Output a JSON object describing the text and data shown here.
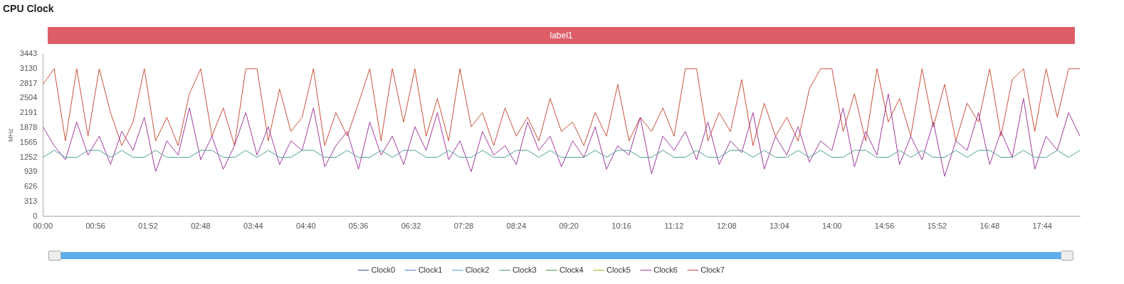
{
  "chart_data": {
    "type": "line",
    "title": "CPU Clock",
    "ylabel": "MHz",
    "annotations": [
      "label1"
    ],
    "legend": "bottom",
    "marker": "none",
    "line_style": "solid",
    "xlim": [
      0,
      18.4
    ],
    "ylim": [
      0,
      3443
    ],
    "xticks": [
      {
        "value": 0,
        "label": "00:00"
      },
      {
        "value": 0.9333,
        "label": "00:56"
      },
      {
        "value": 1.8667,
        "label": "01:52"
      },
      {
        "value": 2.8,
        "label": "02:48"
      },
      {
        "value": 3.7333,
        "label": "03:44"
      },
      {
        "value": 4.6667,
        "label": "04:40"
      },
      {
        "value": 5.6,
        "label": "05:36"
      },
      {
        "value": 6.5333,
        "label": "06:32"
      },
      {
        "value": 7.4667,
        "label": "07:28"
      },
      {
        "value": 8.4,
        "label": "08:24"
      },
      {
        "value": 9.3333,
        "label": "09:20"
      },
      {
        "value": 10.2667,
        "label": "10:16"
      },
      {
        "value": 11.2,
        "label": "11:12"
      },
      {
        "value": 12.1333,
        "label": "12:08"
      },
      {
        "value": 13.0667,
        "label": "13:04"
      },
      {
        "value": 14,
        "label": "14:00"
      },
      {
        "value": 14.9333,
        "label": "14:56"
      },
      {
        "value": 15.8667,
        "label": "15:52"
      },
      {
        "value": 16.8,
        "label": "16:48"
      },
      {
        "value": 17.7333,
        "label": "17:44"
      }
    ],
    "yticks": [
      0,
      313,
      626,
      939,
      1252,
      1565,
      1878,
      2191,
      2504,
      2817,
      3130,
      3443
    ],
    "x": [
      0,
      0.2,
      0.4,
      0.6,
      0.8,
      1,
      1.2,
      1.4,
      1.6,
      1.8,
      2,
      2.2,
      2.4,
      2.6,
      2.8,
      3,
      3.2,
      3.4,
      3.6,
      3.8,
      4,
      4.2,
      4.4,
      4.6,
      4.8,
      5,
      5.2,
      5.4,
      5.6,
      5.8,
      6,
      6.2,
      6.4,
      6.6,
      6.8,
      7,
      7.2,
      7.4,
      7.6,
      7.8,
      8,
      8.2,
      8.4,
      8.6,
      8.8,
      9,
      9.2,
      9.4,
      9.6,
      9.8,
      10,
      10.2,
      10.4,
      10.6,
      10.8,
      11,
      11.2,
      11.4,
      11.6,
      11.8,
      12,
      12.2,
      12.4,
      12.6,
      12.8,
      13,
      13.2,
      13.4,
      13.6,
      13.8,
      14,
      14.2,
      14.4,
      14.6,
      14.8,
      15,
      15.2,
      15.4,
      15.6,
      15.8,
      16,
      16.2,
      16.4,
      16.6,
      16.8,
      17,
      17.2,
      17.4,
      17.6,
      17.8,
      18,
      18.2,
      18.4
    ],
    "series": [
      {
        "name": "Clock0",
        "color": "#3b54a6",
        "values": [
          null,
          null,
          null,
          null,
          null,
          null,
          null,
          null,
          null,
          null,
          null,
          null,
          null,
          null,
          null,
          null,
          null,
          null,
          null,
          null,
          null,
          null,
          null,
          null,
          null,
          null,
          null,
          null,
          null,
          null,
          null,
          null,
          null,
          null,
          null,
          null,
          null,
          null,
          null,
          null,
          null,
          null,
          null,
          null,
          null,
          null,
          null,
          null,
          null,
          null,
          null,
          null,
          null,
          null,
          null,
          null,
          null,
          null,
          null,
          null,
          null,
          null,
          null,
          null,
          null,
          null,
          null,
          null,
          null,
          null,
          null,
          null,
          null,
          null,
          null,
          null,
          null,
          null,
          null,
          null,
          null,
          null,
          null,
          null,
          null,
          null,
          null,
          null,
          null,
          null,
          null,
          null,
          null
        ]
      },
      {
        "name": "Clock1",
        "color": "#4a7fd4",
        "values": [
          null,
          null,
          null,
          null,
          null,
          null,
          null,
          null,
          null,
          null,
          null,
          null,
          null,
          null,
          null,
          null,
          null,
          null,
          null,
          null,
          null,
          null,
          null,
          null,
          null,
          null,
          null,
          null,
          null,
          null,
          null,
          null,
          null,
          null,
          null,
          null,
          null,
          null,
          null,
          null,
          null,
          null,
          null,
          null,
          null,
          null,
          null,
          null,
          null,
          null,
          null,
          null,
          null,
          null,
          null,
          null,
          null,
          null,
          null,
          null,
          null,
          null,
          null,
          null,
          null,
          null,
          null,
          null,
          null,
          null,
          null,
          null,
          null,
          null,
          null,
          null,
          null,
          null,
          null,
          null,
          null,
          null,
          null,
          null,
          null,
          null,
          null,
          null,
          null,
          null,
          null,
          null,
          null
        ]
      },
      {
        "name": "Clock2",
        "color": "#55a9e0",
        "values": [
          null,
          null,
          null,
          null,
          null,
          null,
          null,
          null,
          null,
          null,
          null,
          null,
          null,
          null,
          null,
          null,
          null,
          null,
          null,
          null,
          null,
          null,
          null,
          null,
          null,
          null,
          null,
          null,
          null,
          null,
          null,
          null,
          null,
          null,
          null,
          null,
          null,
          null,
          null,
          null,
          null,
          null,
          null,
          null,
          null,
          null,
          null,
          null,
          null,
          null,
          null,
          null,
          null,
          null,
          null,
          null,
          null,
          null,
          null,
          null,
          null,
          null,
          null,
          null,
          null,
          null,
          null,
          null,
          null,
          null,
          null,
          null,
          null,
          null,
          null,
          null,
          null,
          null,
          null,
          null,
          null,
          null,
          null,
          null,
          null,
          null,
          null,
          null,
          null,
          null,
          null,
          null,
          null
        ]
      },
      {
        "name": "Clock3",
        "color": "#4e9e94",
        "values": [
          1252,
          1400,
          1252,
          1252,
          1400,
          1400,
          1252,
          1400,
          1252,
          1252,
          1400,
          1252,
          1252,
          1252,
          1400,
          1400,
          1252,
          1252,
          1400,
          1252,
          1400,
          1252,
          1252,
          1400,
          1400,
          1252,
          1252,
          1400,
          1252,
          1252,
          1400,
          1252,
          1400,
          1400,
          1252,
          1252,
          1400,
          1252,
          1252,
          1400,
          1252,
          1252,
          1400,
          1400,
          1252,
          1400,
          1252,
          1252,
          1252,
          1400,
          1252,
          1400,
          1400,
          1252,
          1252,
          1400,
          1252,
          1252,
          1400,
          1252,
          1252,
          1400,
          1400,
          1252,
          1400,
          1252,
          1252,
          1400,
          1252,
          1400,
          1252,
          1252,
          1400,
          1400,
          1252,
          1252,
          1400,
          1252,
          1400,
          1252,
          1252,
          1400,
          1252,
          1400,
          1400,
          1252,
          1252,
          1400,
          1252,
          1252,
          1400,
          1252,
          1400
        ]
      },
      {
        "name": "Clock4",
        "color": "#4ea24a",
        "values": [
          null,
          null,
          null,
          null,
          null,
          null,
          null,
          null,
          null,
          null,
          null,
          null,
          null,
          null,
          null,
          null,
          null,
          null,
          null,
          null,
          null,
          null,
          null,
          null,
          null,
          null,
          null,
          null,
          null,
          null,
          null,
          null,
          null,
          null,
          null,
          null,
          null,
          null,
          null,
          null,
          null,
          null,
          null,
          null,
          null,
          null,
          null,
          null,
          null,
          null,
          null,
          null,
          null,
          null,
          null,
          null,
          null,
          null,
          null,
          null,
          null,
          null,
          null,
          null,
          null,
          null,
          null,
          null,
          null,
          null,
          null,
          null,
          null,
          null,
          null,
          null,
          null,
          null,
          null,
          null,
          null,
          null,
          null,
          null,
          null,
          null,
          null,
          null,
          null,
          null,
          null,
          null,
          null
        ]
      },
      {
        "name": "Clock5",
        "color": "#9db522",
        "values": [
          null,
          null,
          null,
          null,
          null,
          null,
          null,
          null,
          null,
          null,
          null,
          null,
          null,
          null,
          null,
          null,
          null,
          null,
          null,
          null,
          null,
          null,
          null,
          null,
          null,
          null,
          null,
          null,
          null,
          null,
          null,
          null,
          null,
          null,
          null,
          null,
          null,
          null,
          null,
          null,
          null,
          null,
          null,
          null,
          null,
          null,
          null,
          null,
          null,
          null,
          null,
          null,
          null,
          null,
          null,
          null,
          null,
          null,
          null,
          null,
          null,
          null,
          null,
          null,
          null,
          null,
          null,
          null,
          null,
          null,
          null,
          null,
          null,
          null,
          null,
          null,
          null,
          null,
          null,
          null,
          null,
          null,
          null,
          null,
          null,
          null,
          null,
          null,
          null,
          null,
          null,
          null,
          null
        ]
      },
      {
        "name": "Clock6",
        "color": "#a03a9e",
        "values": [
          1900,
          1500,
          1200,
          2000,
          1300,
          1700,
          1100,
          1800,
          1400,
          2100,
          950,
          1600,
          1300,
          2300,
          1200,
          1700,
          1000,
          1500,
          2200,
          1300,
          1900,
          1100,
          1600,
          1400,
          2300,
          1050,
          1500,
          1800,
          1000,
          2000,
          1300,
          1700,
          1100,
          1900,
          1400,
          2200,
          1200,
          1600,
          950,
          1800,
          1300,
          1500,
          1100,
          2000,
          1400,
          1700,
          1050,
          1600,
          1250,
          1900,
          1000,
          1500,
          1300,
          2100,
          900,
          1700,
          1400,
          1800,
          1200,
          2000,
          1100,
          1600,
          1350,
          2200,
          1000,
          1700,
          1300,
          1900,
          1150,
          1600,
          1400,
          2300,
          1050,
          1800,
          1300,
          2600,
          1100,
          1700,
          1200,
          2000,
          850,
          1600,
          1400,
          2200,
          1100,
          1800,
          1250,
          2500,
          1000,
          1700,
          1400,
          2200,
          1700
        ]
      },
      {
        "name": "Clock7",
        "color": "#c9523c",
        "values": [
          2800,
          3130,
          1600,
          3130,
          1700,
          3130,
          2200,
          1500,
          2000,
          3130,
          1600,
          2100,
          1500,
          2600,
          3130,
          1700,
          2300,
          1500,
          3130,
          3130,
          1600,
          2700,
          1800,
          2100,
          3130,
          1500,
          2200,
          1700,
          2400,
          3130,
          1600,
          3130,
          2000,
          3130,
          1700,
          2500,
          1600,
          3130,
          1900,
          2200,
          1500,
          2300,
          1700,
          2100,
          1600,
          2500,
          1800,
          2000,
          1500,
          2200,
          1700,
          2800,
          1600,
          2100,
          1800,
          2300,
          1700,
          3130,
          3130,
          1600,
          2200,
          1800,
          2900,
          1500,
          2400,
          1700,
          2100,
          1600,
          2700,
          3130,
          3130,
          1800,
          2600,
          1600,
          3130,
          2000,
          2500,
          1700,
          3130,
          1900,
          2800,
          1600,
          2400,
          2000,
          3130,
          1700,
          2900,
          3130,
          1800,
          3130,
          2100,
          3130,
          3130
        ]
      }
    ]
  }
}
